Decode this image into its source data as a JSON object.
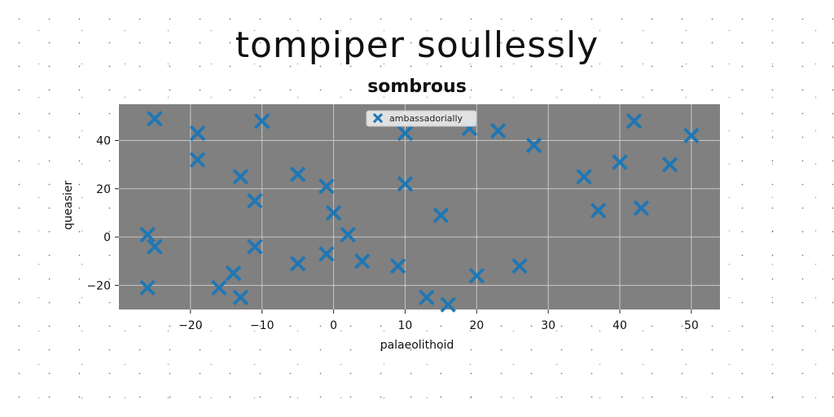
{
  "title": "tompiper soullessly",
  "chart_data": {
    "type": "scatter",
    "title": "sombrous",
    "xlabel": "palaeolithoid",
    "ylabel": "queasier",
    "xlim": [
      -30,
      54
    ],
    "ylim": [
      -30,
      55
    ],
    "xticks": [
      -20,
      -10,
      0,
      10,
      20,
      30,
      40,
      50
    ],
    "yticks": [
      -20,
      0,
      20,
      40
    ],
    "grid": true,
    "legend": "top-center",
    "marker": "X",
    "series_color": "#1f77b4",
    "plot_background": "#808080",
    "series": [
      {
        "name": "ambassadorially",
        "x": [
          -25,
          -19,
          -19,
          -13,
          -11,
          -10,
          -5,
          -1,
          0,
          2,
          4,
          9,
          10,
          10,
          15,
          19,
          23,
          28,
          35,
          37,
          40,
          42,
          43,
          47,
          50,
          -26,
          -26,
          -25,
          -16,
          -14,
          -13,
          -11,
          -5,
          -1,
          13,
          16,
          20,
          26
        ],
        "y": [
          49,
          43,
          32,
          25,
          15,
          48,
          26,
          21,
          10,
          1,
          -10,
          -12,
          43,
          22,
          9,
          45,
          44,
          38,
          25,
          11,
          31,
          48,
          12,
          30,
          42,
          1,
          -21,
          -4,
          -21,
          -15,
          -25,
          -4,
          -11,
          -7,
          -25,
          -28,
          -16,
          -12
        ]
      }
    ]
  }
}
